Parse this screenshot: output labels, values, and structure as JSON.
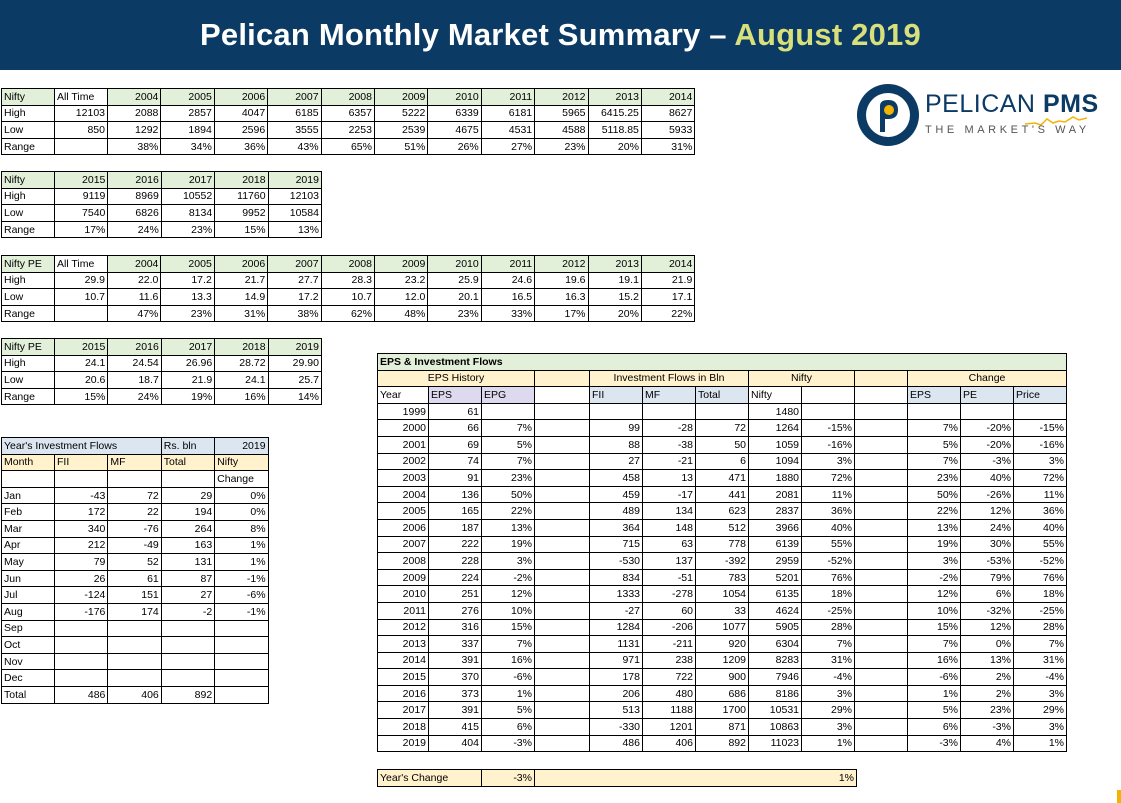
{
  "header": {
    "title": "Pelican Monthly Market Summary –",
    "title_highlight": "August 2019"
  },
  "logo": {
    "brand": "PELICAN",
    "brand_bold": "PMS",
    "tagline": "THE MARKET'S WAY"
  },
  "nifty_table_1": {
    "headers": [
      "Nifty",
      "All Time",
      "2004",
      "2005",
      "2006",
      "2007",
      "2008",
      "2009",
      "2010",
      "2011",
      "2012",
      "2013",
      "2014"
    ],
    "rows": [
      [
        "High",
        "12103",
        "2088",
        "2857",
        "4047",
        "6185",
        "6357",
        "5222",
        "6339",
        "6181",
        "5965",
        "6415.25",
        "8627"
      ],
      [
        "Low",
        "850",
        "1292",
        "1894",
        "2596",
        "3555",
        "2253",
        "2539",
        "4675",
        "4531",
        "4588",
        "5118.85",
        "5933"
      ],
      [
        "Range",
        "",
        "38%",
        "34%",
        "36%",
        "43%",
        "65%",
        "51%",
        "26%",
        "27%",
        "23%",
        "20%",
        "31%"
      ]
    ]
  },
  "nifty_table_2": {
    "headers": [
      "Nifty",
      "2015",
      "2016",
      "2017",
      "2018",
      "2019"
    ],
    "rows": [
      [
        "High",
        "9119",
        "8969",
        "10552",
        "11760",
        "12103"
      ],
      [
        "Low",
        "7540",
        "6826",
        "8134",
        "9952",
        "10584"
      ],
      [
        "Range",
        "17%",
        "24%",
        "23%",
        "15%",
        "13%"
      ]
    ]
  },
  "pe_table_1": {
    "headers": [
      "Nifty PE",
      "All Time",
      "2004",
      "2005",
      "2006",
      "2007",
      "2008",
      "2009",
      "2010",
      "2011",
      "2012",
      "2013",
      "2014"
    ],
    "rows": [
      [
        "High",
        "29.9",
        "22.0",
        "17.2",
        "21.7",
        "27.7",
        "28.3",
        "23.2",
        "25.9",
        "24.6",
        "19.6",
        "19.1",
        "21.9"
      ],
      [
        "Low",
        "10.7",
        "11.6",
        "13.3",
        "14.9",
        "17.2",
        "10.7",
        "12.0",
        "20.1",
        "16.5",
        "16.3",
        "15.2",
        "17.1"
      ],
      [
        "Range",
        "",
        "47%",
        "23%",
        "31%",
        "38%",
        "62%",
        "48%",
        "23%",
        "33%",
        "17%",
        "20%",
        "22%"
      ]
    ]
  },
  "pe_table_2": {
    "headers": [
      "Nifty PE",
      "2015",
      "2016",
      "2017",
      "2018",
      "2019"
    ],
    "rows": [
      [
        "High",
        "24.1",
        "24.54",
        "26.96",
        "28.72",
        "29.90"
      ],
      [
        "Low",
        "20.6",
        "18.7",
        "21.9",
        "24.1",
        "25.7"
      ],
      [
        "Range",
        "15%",
        "24%",
        "19%",
        "16%",
        "14%"
      ]
    ]
  },
  "flows_table": {
    "title": "Year's Investment Flows",
    "unit": "Rs. bln",
    "year": "2019",
    "headers": [
      "Month",
      "FII",
      "MF",
      "Total",
      "Nifty"
    ],
    "subheader": "Change",
    "rows": [
      [
        "Jan",
        "-43",
        "72",
        "29",
        "0%"
      ],
      [
        "Feb",
        "172",
        "22",
        "194",
        "0%"
      ],
      [
        "Mar",
        "340",
        "-76",
        "264",
        "8%"
      ],
      [
        "Apr",
        "212",
        "-49",
        "163",
        "1%"
      ],
      [
        "May",
        "79",
        "52",
        "131",
        "1%"
      ],
      [
        "Jun",
        "26",
        "61",
        "87",
        "-1%"
      ],
      [
        "Jul",
        "-124",
        "151",
        "27",
        "-6%"
      ],
      [
        "Aug",
        "-176",
        "174",
        "-2",
        "-1%"
      ],
      [
        "Sep",
        "",
        "",
        "",
        ""
      ],
      [
        "Oct",
        "",
        "",
        "",
        ""
      ],
      [
        "Nov",
        "",
        "",
        "",
        ""
      ],
      [
        "Dec",
        "",
        "",
        "",
        ""
      ]
    ],
    "total": [
      "Total",
      "486",
      "406",
      "892",
      ""
    ]
  },
  "eps_table": {
    "title": "EPS & Investment Flows",
    "groups": {
      "eps_history": "EPS History",
      "flows": "Investment Flows in Bln",
      "nifty": "Nifty",
      "change": "Change"
    },
    "headers": [
      "Year",
      "EPS",
      "EPG",
      "",
      "FII",
      "MF",
      "Total",
      "Nifty",
      "",
      "",
      "EPS",
      "PE",
      "Price"
    ],
    "rows": [
      [
        "1999",
        "61",
        "",
        "",
        "",
        "",
        "",
        "1480",
        "",
        "",
        "",
        "",
        ""
      ],
      [
        "2000",
        "66",
        "7%",
        "",
        "99",
        "-28",
        "72",
        "1264",
        "-15%",
        "",
        "7%",
        "-20%",
        "-15%"
      ],
      [
        "2001",
        "69",
        "5%",
        "",
        "88",
        "-38",
        "50",
        "1059",
        "-16%",
        "",
        "5%",
        "-20%",
        "-16%"
      ],
      [
        "2002",
        "74",
        "7%",
        "",
        "27",
        "-21",
        "6",
        "1094",
        "3%",
        "",
        "7%",
        "-3%",
        "3%"
      ],
      [
        "2003",
        "91",
        "23%",
        "",
        "458",
        "13",
        "471",
        "1880",
        "72%",
        "",
        "23%",
        "40%",
        "72%"
      ],
      [
        "2004",
        "136",
        "50%",
        "",
        "459",
        "-17",
        "441",
        "2081",
        "11%",
        "",
        "50%",
        "-26%",
        "11%"
      ],
      [
        "2005",
        "165",
        "22%",
        "",
        "489",
        "134",
        "623",
        "2837",
        "36%",
        "",
        "22%",
        "12%",
        "36%"
      ],
      [
        "2006",
        "187",
        "13%",
        "",
        "364",
        "148",
        "512",
        "3966",
        "40%",
        "",
        "13%",
        "24%",
        "40%"
      ],
      [
        "2007",
        "222",
        "19%",
        "",
        "715",
        "63",
        "778",
        "6139",
        "55%",
        "",
        "19%",
        "30%",
        "55%"
      ],
      [
        "2008",
        "228",
        "3%",
        "",
        "-530",
        "137",
        "-392",
        "2959",
        "-52%",
        "",
        "3%",
        "-53%",
        "-52%"
      ],
      [
        "2009",
        "224",
        "-2%",
        "",
        "834",
        "-51",
        "783",
        "5201",
        "76%",
        "",
        "-2%",
        "79%",
        "76%"
      ],
      [
        "2010",
        "251",
        "12%",
        "",
        "1333",
        "-278",
        "1054",
        "6135",
        "18%",
        "",
        "12%",
        "6%",
        "18%"
      ],
      [
        "2011",
        "276",
        "10%",
        "",
        "-27",
        "60",
        "33",
        "4624",
        "-25%",
        "",
        "10%",
        "-32%",
        "-25%"
      ],
      [
        "2012",
        "316",
        "15%",
        "",
        "1284",
        "-206",
        "1077",
        "5905",
        "28%",
        "",
        "15%",
        "12%",
        "28%"
      ],
      [
        "2013",
        "337",
        "7%",
        "",
        "1131",
        "-211",
        "920",
        "6304",
        "7%",
        "",
        "7%",
        "0%",
        "7%"
      ],
      [
        "2014",
        "391",
        "16%",
        "",
        "971",
        "238",
        "1209",
        "8283",
        "31%",
        "",
        "16%",
        "13%",
        "31%"
      ],
      [
        "2015",
        "370",
        "-6%",
        "",
        "178",
        "722",
        "900",
        "7946",
        "-4%",
        "",
        "-6%",
        "2%",
        "-4%"
      ],
      [
        "2016",
        "373",
        "1%",
        "",
        "206",
        "480",
        "686",
        "8186",
        "3%",
        "",
        "1%",
        "2%",
        "3%"
      ],
      [
        "2017",
        "391",
        "5%",
        "",
        "513",
        "1188",
        "1700",
        "10531",
        "29%",
        "",
        "5%",
        "23%",
        "29%"
      ],
      [
        "2018",
        "415",
        "6%",
        "",
        "-330",
        "1201",
        "871",
        "10863",
        "3%",
        "",
        "6%",
        "-3%",
        "3%"
      ],
      [
        "2019",
        "404",
        "-3%",
        "",
        "486",
        "406",
        "892",
        "11023",
        "1%",
        "",
        "-3%",
        "4%",
        "1%"
      ]
    ]
  },
  "years_change": {
    "label": "Year's Change",
    "eps": "-3%",
    "nifty": "1%"
  },
  "colors": {
    "header_bg": "#0b3a64",
    "title_accent": "#d7e07a",
    "cell_green": "#e2efd9",
    "cell_purple": "#ddd9ee",
    "cell_blue": "#dce6f1",
    "cell_yellow": "#fff2cc"
  }
}
